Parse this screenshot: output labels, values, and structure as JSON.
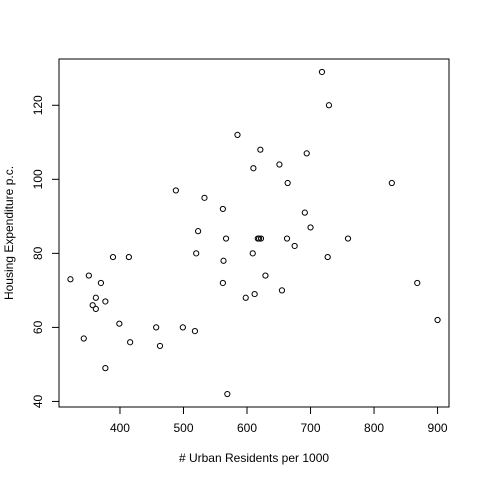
{
  "chart_data": {
    "type": "scatter",
    "title": "",
    "xlabel": "# Urban Residents per 1000",
    "ylabel": "Housing Expenditure p.c.",
    "xlim": [
      304,
      918
    ],
    "ylim": [
      38.5,
      132.5
    ],
    "xticks": [
      400,
      500,
      600,
      700,
      800,
      900
    ],
    "yticks": [
      40,
      60,
      80,
      100,
      120
    ],
    "grid": false,
    "points": [
      {
        "x": 322,
        "y": 73
      },
      {
        "x": 343,
        "y": 57
      },
      {
        "x": 351,
        "y": 74
      },
      {
        "x": 357,
        "y": 66
      },
      {
        "x": 362,
        "y": 68
      },
      {
        "x": 362,
        "y": 65
      },
      {
        "x": 370,
        "y": 72
      },
      {
        "x": 377,
        "y": 67
      },
      {
        "x": 377,
        "y": 49
      },
      {
        "x": 389,
        "y": 79
      },
      {
        "x": 399,
        "y": 61
      },
      {
        "x": 414,
        "y": 79
      },
      {
        "x": 416,
        "y": 56
      },
      {
        "x": 457,
        "y": 60
      },
      {
        "x": 463,
        "y": 55
      },
      {
        "x": 488,
        "y": 97
      },
      {
        "x": 499,
        "y": 60
      },
      {
        "x": 518,
        "y": 59
      },
      {
        "x": 520,
        "y": 80
      },
      {
        "x": 523,
        "y": 86
      },
      {
        "x": 533,
        "y": 95
      },
      {
        "x": 562,
        "y": 92
      },
      {
        "x": 562,
        "y": 72
      },
      {
        "x": 563,
        "y": 78
      },
      {
        "x": 567,
        "y": 84
      },
      {
        "x": 569,
        "y": 42
      },
      {
        "x": 585,
        "y": 112
      },
      {
        "x": 598,
        "y": 68
      },
      {
        "x": 609,
        "y": 80
      },
      {
        "x": 610,
        "y": 103
      },
      {
        "x": 612,
        "y": 69
      },
      {
        "x": 617,
        "y": 84
      },
      {
        "x": 619,
        "y": 84
      },
      {
        "x": 621,
        "y": 108
      },
      {
        "x": 622,
        "y": 84
      },
      {
        "x": 629,
        "y": 74
      },
      {
        "x": 651,
        "y": 104
      },
      {
        "x": 655,
        "y": 70
      },
      {
        "x": 663,
        "y": 84
      },
      {
        "x": 664,
        "y": 99
      },
      {
        "x": 675,
        "y": 82
      },
      {
        "x": 691,
        "y": 91
      },
      {
        "x": 694,
        "y": 107
      },
      {
        "x": 700,
        "y": 87
      },
      {
        "x": 718,
        "y": 129
      },
      {
        "x": 727,
        "y": 79
      },
      {
        "x": 729,
        "y": 120
      },
      {
        "x": 759,
        "y": 84
      },
      {
        "x": 828,
        "y": 99
      },
      {
        "x": 868,
        "y": 72
      },
      {
        "x": 900,
        "y": 62
      }
    ]
  }
}
